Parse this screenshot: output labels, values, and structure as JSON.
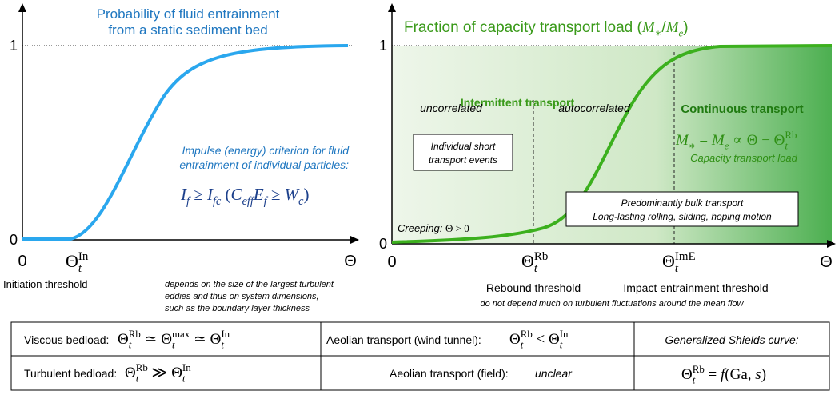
{
  "left_panel": {
    "title": [
      "Probability of fluid entrainment",
      "from a static sediment bed"
    ],
    "y_labels": [
      "0",
      "1"
    ],
    "x_origin": "0",
    "x_axis": "Θ",
    "threshold": [
      {
        "t": "Θ"
      },
      {
        "sub": "t",
        "sup": "In"
      }
    ],
    "threshold_caption": "Initiation threshold",
    "threshold_note": [
      "depends on the size of the largest turbulent",
      "eddies and thus on system dimensions,",
      "such as the boundary layer thickness"
    ],
    "criterion": [
      "Impulse (energy) criterion for fluid",
      "entrainment of individual particles:"
    ],
    "criterion_formula": [
      {
        "i": "I"
      },
      {
        "sub": "f"
      },
      " ≥ ",
      {
        "i": "I"
      },
      {
        "sub": "fc"
      },
      " (",
      {
        "i": "C"
      },
      {
        "sub": "eff"
      },
      {
        "i": "E"
      },
      {
        "sub": "f"
      },
      " ≥ ",
      {
        "i": "W"
      },
      {
        "sub": "c"
      },
      ")"
    ]
  },
  "right_panel": {
    "title": [
      "Fraction of capacity transport load (",
      {
        "i": "M"
      },
      {
        "sub": "∗"
      },
      "/",
      {
        "i": "M"
      },
      {
        "sub": "e"
      },
      ")"
    ],
    "y_labels": [
      "0",
      "1"
    ],
    "x_origin": "0",
    "x_axis": "Θ",
    "intermittent": "Intermittent transport",
    "continuous": "Continuous transport",
    "uncorrelated": "uncorrelated",
    "autocorrelated": "autocorrelated",
    "capacity_formula": [
      {
        "i": "M"
      },
      {
        "sub": "∗"
      },
      " = ",
      {
        "i": "M"
      },
      {
        "sub": "e"
      },
      " ∝ Θ − Θ",
      {
        "sub": "t",
        "sup": "Rb"
      }
    ],
    "capacity_caption": "Capacity transport load",
    "short_events": [
      "Individual short",
      "transport events"
    ],
    "bulk_transport": [
      "Predominantly bulk transport",
      "Long-lasting rolling, sliding, hoping motion"
    ],
    "creeping": [
      "Creeping: ",
      {
        "t": "Θ > 0"
      }
    ],
    "rebound": [
      {
        "t": "Θ"
      },
      {
        "sub": "t",
        "sup": "Rb"
      }
    ],
    "impact": [
      {
        "t": "Θ"
      },
      {
        "sub": "t",
        "sup": "ImE"
      }
    ],
    "rebound_caption": "Rebound threshold",
    "impact_caption": "Impact entrainment threshold",
    "threshold_note": "do not depend much on turbulent fluctuations around the mean flow"
  },
  "table": {
    "rows": [
      [
        {
          "label": "Viscous bedload:",
          "formula": [
            "Θ",
            {
              "sub": "t",
              "sup": "Rb"
            },
            " ≃ Θ",
            {
              "sub": "t",
              "sup": "max"
            },
            " ≃ Θ",
            {
              "sub": "t",
              "sup": "In"
            }
          ]
        },
        {
          "label": "Aeolian transport (wind tunnel):",
          "formula": [
            "Θ",
            {
              "sub": "t",
              "sup": "Rb"
            },
            " < Θ",
            {
              "sub": "t",
              "sup": "In"
            }
          ]
        },
        {
          "label": "Generalized Shields curve:"
        }
      ],
      [
        {
          "label": "Turbulent bedload:",
          "formula": [
            "Θ",
            {
              "sub": "t",
              "sup": "Rb"
            },
            " ≫ Θ",
            {
              "sub": "t",
              "sup": "In"
            }
          ]
        },
        {
          "label": "Aeolian transport (field):",
          "note": "unclear"
        },
        {
          "formula": [
            "Θ",
            {
              "sub": "t",
              "sup": "Rb"
            },
            " = ",
            {
              "i": "f"
            },
            "(Ga, ",
            {
              "i": "s"
            },
            ")"
          ]
        }
      ]
    ]
  }
}
